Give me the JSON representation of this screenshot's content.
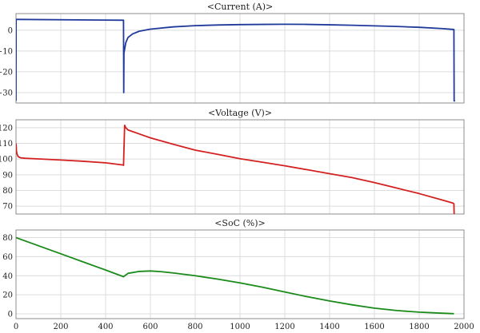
{
  "chart_data": [
    {
      "type": "line",
      "title": "<Current (A)>",
      "xlim": [
        0,
        2000
      ],
      "ylim": [
        -35,
        8
      ],
      "yticks": [
        0,
        -10,
        -20,
        -30
      ],
      "grid": true,
      "series": [
        {
          "color": "#1f3a9a",
          "x": [
            0,
            0.5,
            5,
            480,
            481,
            482,
            490,
            500,
            520,
            550,
            600,
            700,
            800,
            900,
            1000,
            1100,
            1200,
            1300,
            1400,
            1500,
            1600,
            1700,
            1800,
            1900,
            1950,
            1955,
            1956,
            1960
          ],
          "y": [
            -34,
            5.2,
            5.2,
            4.8,
            -30,
            -11,
            -6,
            -3.5,
            -1.8,
            -0.5,
            0.5,
            1.6,
            2.2,
            2.5,
            2.7,
            2.8,
            2.85,
            2.8,
            2.6,
            2.4,
            2.1,
            1.8,
            1.4,
            0.8,
            0.4,
            0.3,
            -34,
            -34
          ]
        }
      ]
    },
    {
      "type": "line",
      "title": "<Voltage (V)>",
      "xlim": [
        0,
        2000
      ],
      "ylim": [
        65,
        125
      ],
      "yticks": [
        120,
        110,
        100,
        90,
        80,
        70
      ],
      "grid": true,
      "series": [
        {
          "color": "#d42020",
          "x": [
            0,
            2,
            5,
            10,
            20,
            40,
            100,
            200,
            300,
            400,
            478,
            480,
            485,
            490,
            500,
            550,
            600,
            700,
            800,
            900,
            1000,
            1100,
            1200,
            1300,
            1400,
            1500,
            1600,
            1700,
            1800,
            1900,
            1950,
            1955,
            1956
          ],
          "y": [
            110,
            105,
            103,
            101.5,
            100.8,
            100.5,
            100.1,
            99.4,
            98.6,
            97.6,
            96.2,
            96,
            121.5,
            120,
            118.5,
            116,
            113.5,
            109.5,
            105.7,
            103,
            100.2,
            98,
            95.7,
            93.2,
            90.7,
            88.2,
            85,
            81.5,
            78,
            74,
            72,
            71.5,
            65
          ]
        }
      ]
    },
    {
      "type": "line",
      "title": "<SoC (%)>",
      "xlim": [
        0,
        2000
      ],
      "ylim": [
        -5,
        88
      ],
      "yticks": [
        80,
        60,
        40,
        20,
        0
      ],
      "xticks": [
        0,
        200,
        400,
        600,
        800,
        1000,
        1200,
        1400,
        1600,
        1800,
        2000
      ],
      "grid": true,
      "series": [
        {
          "color": "#1a8a1a",
          "x": [
            0,
            100,
            200,
            300,
            400,
            480,
            500,
            550,
            600,
            650,
            700,
            800,
            900,
            1000,
            1100,
            1200,
            1300,
            1400,
            1500,
            1600,
            1700,
            1800,
            1900,
            1955
          ],
          "y": [
            80,
            71.5,
            63,
            54.5,
            46,
            39,
            42.5,
            44.5,
            45,
            44.2,
            43,
            40,
            36.5,
            32.5,
            28,
            23,
            18,
            13.5,
            9.5,
            6,
            3.5,
            1.8,
            0.7,
            0.2
          ]
        }
      ]
    }
  ]
}
